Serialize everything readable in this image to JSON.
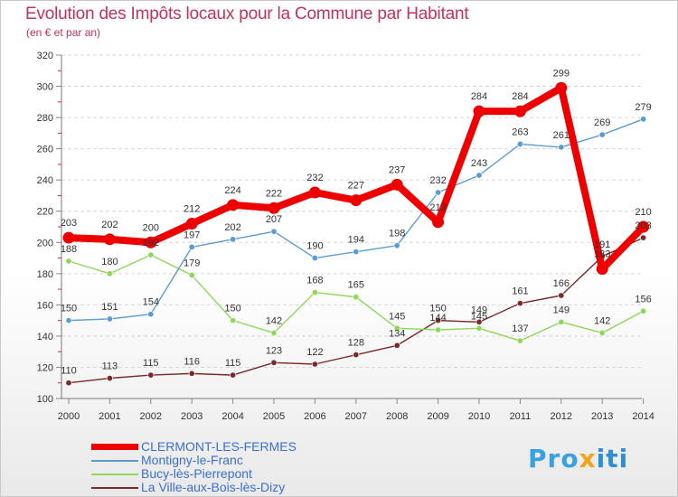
{
  "chart_data": {
    "type": "line",
    "title": "Evolution des Impôts locaux pour la Commune par Habitant",
    "subtitle": "(en € et par an)",
    "xlabel": "",
    "ylabel": "",
    "ylim": [
      100,
      320
    ],
    "yticks": [
      100,
      120,
      140,
      160,
      180,
      200,
      220,
      240,
      260,
      280,
      300,
      320
    ],
    "categories": [
      "2000",
      "2001",
      "2002",
      "2003",
      "2004",
      "2005",
      "2006",
      "2007",
      "2008",
      "2009",
      "2010",
      "2011",
      "2012",
      "2013",
      "2014"
    ],
    "legend_position": "bottom-left",
    "grid": "horizontal dashed",
    "series": [
      {
        "name": "CLERMONT-LES-FERMES",
        "color": "#ee0000",
        "labels": [
          "203",
          "202",
          "200",
          "212",
          "224",
          "222",
          "232",
          "227",
          "237",
          "213",
          "284",
          "284",
          "299",
          "183",
          "210"
        ],
        "values": [
          203,
          202,
          200,
          212,
          224,
          222,
          232,
          227,
          237,
          213,
          284,
          284,
          299,
          183,
          210
        ]
      },
      {
        "name": "Montigny-le-Franc",
        "color": "#5b9bd5",
        "labels": [
          "150",
          "151",
          "154",
          "197",
          "202",
          "207",
          "190",
          "194",
          "198",
          "232",
          "243",
          "263",
          "261",
          "269",
          "279"
        ],
        "values": [
          150,
          151,
          154,
          197,
          202,
          207,
          190,
          194,
          198,
          232,
          243,
          263,
          261,
          269,
          279
        ]
      },
      {
        "name": "Bucy-lès-Pierrepont",
        "color": "#8fd65a",
        "labels": [
          "188",
          "180",
          "192",
          "179",
          "150",
          "142",
          "168",
          "165",
          "145",
          "144",
          "145",
          "137",
          "149",
          "142",
          "156"
        ],
        "values": [
          188,
          180,
          192,
          179,
          150,
          142,
          168,
          165,
          145,
          144,
          145,
          137,
          149,
          142,
          156
        ]
      },
      {
        "name": "La Ville-aux-Bois-lès-Dizy",
        "color": "#7a2a2a",
        "labels": [
          "110",
          "113",
          "115",
          "116",
          "115",
          "123",
          "122",
          "128",
          "134",
          "150",
          "149",
          "161",
          "166",
          "191",
          "203"
        ],
        "values": [
          110,
          113,
          115,
          116,
          115,
          123,
          122,
          128,
          134,
          150,
          149,
          161,
          166,
          191,
          203
        ]
      }
    ]
  },
  "branding": {
    "logo_part1": "Pro",
    "logo_part2": "x",
    "logo_part3": "iti"
  }
}
